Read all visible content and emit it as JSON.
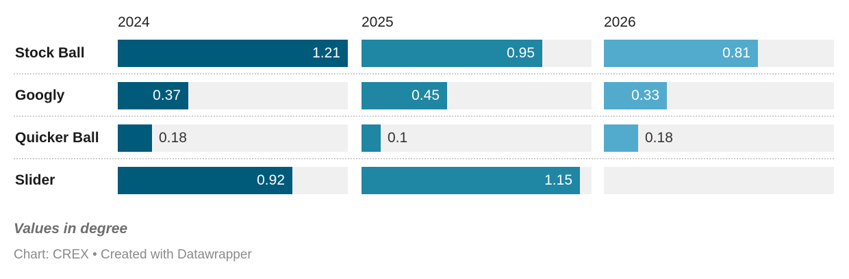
{
  "chart_data": {
    "type": "bar",
    "orientation": "horizontal",
    "layout": "small-multiples",
    "categories": [
      "Stock Ball",
      "Googly",
      "Quicker Ball",
      "Slider"
    ],
    "series": [
      {
        "name": "2024",
        "values": [
          1.21,
          0.37,
          0.18,
          0.92
        ],
        "color": "#005a7a"
      },
      {
        "name": "2025",
        "values": [
          0.95,
          0.45,
          0.1,
          1.15
        ],
        "color": "#1f86a4"
      },
      {
        "name": "2026",
        "values": [
          0.81,
          0.33,
          0.18,
          null
        ],
        "color": "#52abcd"
      }
    ],
    "value_labels": [
      [
        "1.21",
        "0.37",
        "0.18",
        "0.92"
      ],
      [
        "0.95",
        "0.45",
        "0.1",
        "1.15"
      ],
      [
        "0.81",
        "0.33",
        "0.18",
        ""
      ]
    ],
    "xlim": [
      0,
      1.21
    ],
    "background_track_color": "#f0f0f0",
    "label_inside_color": "#ffffff",
    "label_outside_color": "#333333",
    "note": "Values in degree",
    "credit": "Chart: CREX • Created with Datawrapper"
  }
}
